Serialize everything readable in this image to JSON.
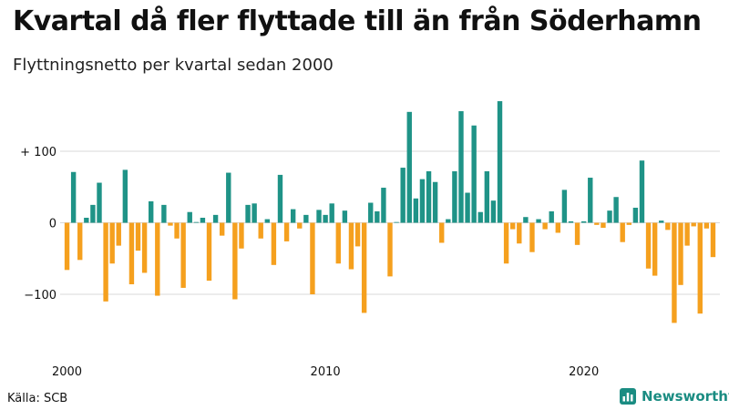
{
  "title": "Kvartal då fler flyttade till än från Söderhamn",
  "subtitle": "Flyttningsnetto per kvartal sedan 2000",
  "source": "Källa: SCB",
  "logo_text": "Newsworthy",
  "colors": {
    "positive": "#1f9387",
    "negative": "#f5a01e",
    "grid": "#d8d8d8",
    "logo": "#1a8c82"
  },
  "chart_data": {
    "type": "bar",
    "title": "Kvartal då fler flyttade till än från Söderhamn",
    "subtitle": "Flyttningsnetto per kvartal sedan 2000",
    "xlabel": "",
    "ylabel": "",
    "ylim": [
      -150,
      175
    ],
    "yticks": [
      {
        "value": 100,
        "label": "+ 100"
      },
      {
        "value": 0,
        "label": "0"
      },
      {
        "value": -100,
        "label": "−100"
      }
    ],
    "xticks": [
      {
        "quarter": "2000Q1",
        "label": "2000"
      },
      {
        "quarter": "2010Q1",
        "label": "2010"
      },
      {
        "quarter": "2020Q1",
        "label": "2020"
      }
    ],
    "grid": true,
    "legend": "none",
    "categories": [
      "2000Q1",
      "2000Q2",
      "2000Q3",
      "2000Q4",
      "2001Q1",
      "2001Q2",
      "2001Q3",
      "2001Q4",
      "2002Q1",
      "2002Q2",
      "2002Q3",
      "2002Q4",
      "2003Q1",
      "2003Q2",
      "2003Q3",
      "2003Q4",
      "2004Q1",
      "2004Q2",
      "2004Q3",
      "2004Q4",
      "2005Q1",
      "2005Q2",
      "2005Q3",
      "2005Q4",
      "2006Q1",
      "2006Q2",
      "2006Q3",
      "2006Q4",
      "2007Q1",
      "2007Q2",
      "2007Q3",
      "2007Q4",
      "2008Q1",
      "2008Q2",
      "2008Q3",
      "2008Q4",
      "2009Q1",
      "2009Q2",
      "2009Q3",
      "2009Q4",
      "2010Q1",
      "2010Q2",
      "2010Q3",
      "2010Q4",
      "2011Q1",
      "2011Q2",
      "2011Q3",
      "2011Q4",
      "2012Q1",
      "2012Q2",
      "2012Q3",
      "2012Q4",
      "2013Q1",
      "2013Q2",
      "2013Q3",
      "2013Q4",
      "2014Q1",
      "2014Q2",
      "2014Q3",
      "2014Q4",
      "2015Q1",
      "2015Q2",
      "2015Q3",
      "2015Q4",
      "2016Q1",
      "2016Q2",
      "2016Q3",
      "2016Q4",
      "2017Q1",
      "2017Q2",
      "2017Q3",
      "2017Q4",
      "2018Q1",
      "2018Q2",
      "2018Q3",
      "2018Q4",
      "2019Q1",
      "2019Q2",
      "2019Q3",
      "2019Q4",
      "2020Q1",
      "2020Q2",
      "2020Q3",
      "2020Q4",
      "2021Q1",
      "2021Q2",
      "2021Q3",
      "2021Q4",
      "2022Q1",
      "2022Q2",
      "2022Q3",
      "2022Q4",
      "2023Q1",
      "2023Q2",
      "2023Q3",
      "2023Q4",
      "2024Q1",
      "2024Q2",
      "2024Q3",
      "2024Q4",
      "2025Q1"
    ],
    "values": [
      -66,
      71,
      -52,
      7,
      25,
      56,
      -110,
      -57,
      -32,
      74,
      -86,
      -39,
      -70,
      30,
      -102,
      25,
      -4,
      -22,
      -91,
      15,
      0,
      7,
      -81,
      11,
      -18,
      70,
      -107,
      -36,
      25,
      27,
      -22,
      5,
      -59,
      67,
      -26,
      19,
      -8,
      11,
      -100,
      18,
      11,
      27,
      -57,
      17,
      -65,
      -33,
      -126,
      28,
      16,
      49,
      -75,
      0,
      77,
      155,
      34,
      61,
      72,
      57,
      -28,
      5,
      72,
      156,
      42,
      136,
      15,
      72,
      31,
      170,
      -57,
      -9,
      -29,
      8,
      -41,
      5,
      -9,
      16,
      -14,
      46,
      2,
      -31,
      2,
      63,
      -3,
      -7,
      17,
      36,
      -27,
      -3,
      21,
      87,
      -64,
      -74,
      3,
      -10,
      -140,
      -87,
      -32,
      -5,
      -127,
      -8,
      -48
    ]
  }
}
